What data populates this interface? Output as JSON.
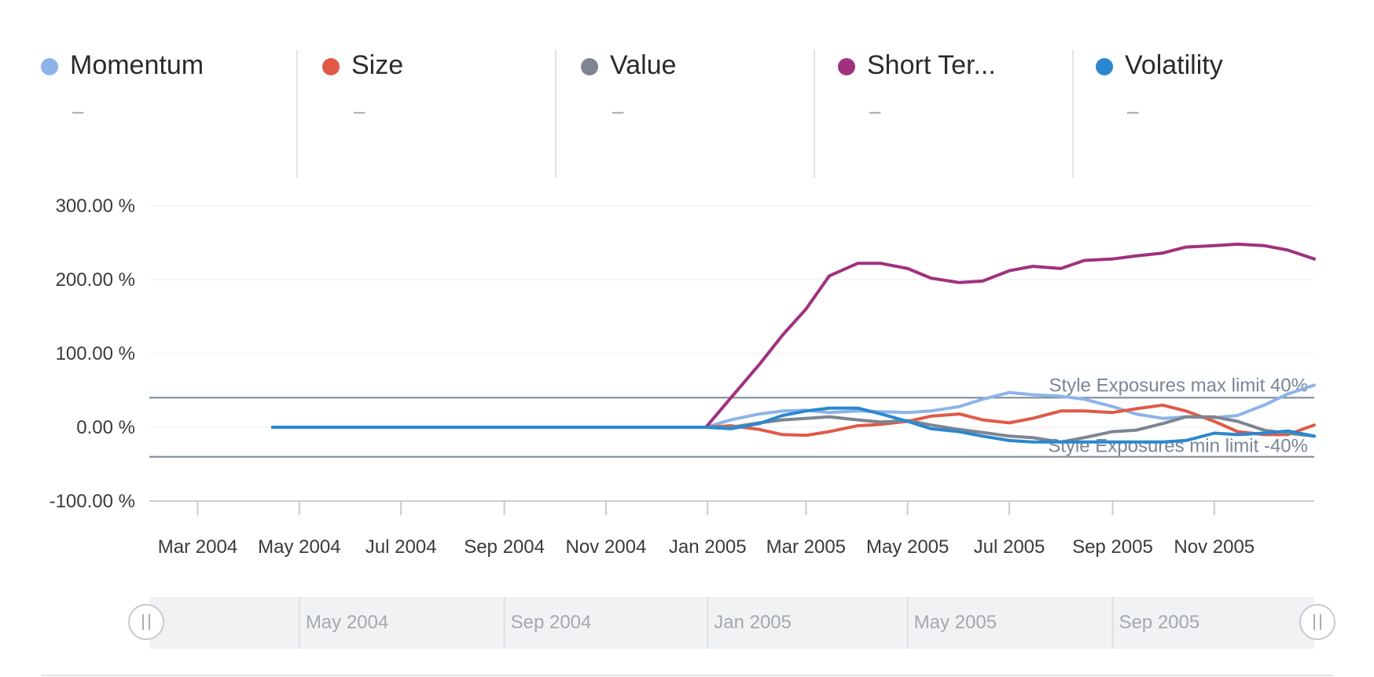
{
  "legend": {
    "items": [
      {
        "name": "Momentum",
        "value": "–",
        "color": "#8db4e8"
      },
      {
        "name": "Size",
        "value": "–",
        "color": "#e05a47"
      },
      {
        "name": "Value",
        "value": "–",
        "color": "#7d8590"
      },
      {
        "name": "Short Ter...",
        "value": "–",
        "color": "#a0317e"
      },
      {
        "name": "Volatility",
        "value": "–",
        "color": "#2b88d0"
      }
    ]
  },
  "chart_data": {
    "type": "line",
    "ylim": [
      -100,
      300
    ],
    "y_ticks": [
      300,
      200,
      100,
      0,
      -100
    ],
    "y_tick_labels": [
      "300.00 %",
      "200.00 %",
      "100.00 %",
      "0.00 %",
      "-100.00 %"
    ],
    "x_tick_labels": [
      "Mar 2004",
      "May 2004",
      "Jul 2004",
      "Sep 2004",
      "Nov 2004",
      "Jan 2005",
      "Mar 2005",
      "May 2005",
      "Jul 2005",
      "Sep 2005",
      "Nov 2005"
    ],
    "x_tick_dates": [
      "2004-03-01",
      "2004-05-01",
      "2004-07-01",
      "2004-09-01",
      "2004-11-01",
      "2005-01-01",
      "2005-03-01",
      "2005-05-01",
      "2005-07-01",
      "2005-09-01",
      "2005-11-01"
    ],
    "x_range": [
      "2004-02-01",
      "2005-12-31"
    ],
    "grid": true,
    "reference_lines": [
      {
        "label": "Style Exposures max limit 40%",
        "value": 40
      },
      {
        "label": "Style Exposures min limit -40%",
        "value": -40
      }
    ],
    "navigator": {
      "labels": [
        "May 2004",
        "Sep 2004",
        "Jan 2005",
        "May 2005",
        "Sep 2005"
      ],
      "dates": [
        "2004-05-01",
        "2004-09-01",
        "2005-01-01",
        "2005-05-01",
        "2005-09-01"
      ]
    },
    "series": [
      {
        "name": "Momentum",
        "color": "#8db4e8",
        "points": [
          [
            "2004-04-15",
            0
          ],
          [
            "2004-12-31",
            0
          ],
          [
            "2005-01-15",
            10
          ],
          [
            "2005-02-01",
            18
          ],
          [
            "2005-02-15",
            22
          ],
          [
            "2005-03-01",
            23
          ],
          [
            "2005-03-15",
            20
          ],
          [
            "2005-04-01",
            22
          ],
          [
            "2005-04-15",
            21
          ],
          [
            "2005-05-01",
            20
          ],
          [
            "2005-05-15",
            22
          ],
          [
            "2005-06-01",
            28
          ],
          [
            "2005-06-15",
            38
          ],
          [
            "2005-07-01",
            47
          ],
          [
            "2005-07-15",
            44
          ],
          [
            "2005-08-01",
            42
          ],
          [
            "2005-08-15",
            38
          ],
          [
            "2005-09-01",
            28
          ],
          [
            "2005-09-15",
            18
          ],
          [
            "2005-10-01",
            12
          ],
          [
            "2005-10-15",
            14
          ],
          [
            "2005-11-01",
            13
          ],
          [
            "2005-11-15",
            16
          ],
          [
            "2005-12-01",
            30
          ],
          [
            "2005-12-15",
            45
          ],
          [
            "2005-12-31",
            57
          ]
        ]
      },
      {
        "name": "Size",
        "color": "#e05a47",
        "points": [
          [
            "2004-04-15",
            0
          ],
          [
            "2004-12-31",
            0
          ],
          [
            "2005-01-15",
            2
          ],
          [
            "2005-02-01",
            -3
          ],
          [
            "2005-02-15",
            -10
          ],
          [
            "2005-03-01",
            -11
          ],
          [
            "2005-03-15",
            -6
          ],
          [
            "2005-04-01",
            2
          ],
          [
            "2005-04-15",
            4
          ],
          [
            "2005-05-01",
            8
          ],
          [
            "2005-05-15",
            15
          ],
          [
            "2005-06-01",
            18
          ],
          [
            "2005-06-15",
            10
          ],
          [
            "2005-07-01",
            6
          ],
          [
            "2005-07-15",
            12
          ],
          [
            "2005-08-01",
            22
          ],
          [
            "2005-08-15",
            22
          ],
          [
            "2005-09-01",
            20
          ],
          [
            "2005-09-15",
            25
          ],
          [
            "2005-10-01",
            30
          ],
          [
            "2005-10-15",
            22
          ],
          [
            "2005-11-01",
            8
          ],
          [
            "2005-11-15",
            -6
          ],
          [
            "2005-12-01",
            -10
          ],
          [
            "2005-12-15",
            -10
          ],
          [
            "2005-12-31",
            3
          ]
        ]
      },
      {
        "name": "Value",
        "color": "#7d8590",
        "points": [
          [
            "2004-04-15",
            0
          ],
          [
            "2004-12-31",
            0
          ],
          [
            "2005-01-15",
            0
          ],
          [
            "2005-02-01",
            6
          ],
          [
            "2005-02-15",
            10
          ],
          [
            "2005-03-01",
            12
          ],
          [
            "2005-03-15",
            14
          ],
          [
            "2005-04-01",
            10
          ],
          [
            "2005-04-15",
            7
          ],
          [
            "2005-05-01",
            9
          ],
          [
            "2005-05-15",
            3
          ],
          [
            "2005-06-01",
            -3
          ],
          [
            "2005-06-15",
            -7
          ],
          [
            "2005-07-01",
            -12
          ],
          [
            "2005-07-15",
            -14
          ],
          [
            "2005-08-01",
            -20
          ],
          [
            "2005-08-15",
            -14
          ],
          [
            "2005-09-01",
            -6
          ],
          [
            "2005-09-15",
            -4
          ],
          [
            "2005-10-01",
            5
          ],
          [
            "2005-10-15",
            14
          ],
          [
            "2005-11-01",
            14
          ],
          [
            "2005-11-15",
            8
          ],
          [
            "2005-12-01",
            -4
          ],
          [
            "2005-12-15",
            -8
          ],
          [
            "2005-12-31",
            -12
          ]
        ]
      },
      {
        "name": "Short Ter...",
        "color": "#a0317e",
        "points": [
          [
            "2004-04-15",
            0
          ],
          [
            "2004-12-31",
            0
          ],
          [
            "2005-01-15",
            40
          ],
          [
            "2005-02-01",
            85
          ],
          [
            "2005-02-15",
            125
          ],
          [
            "2005-03-01",
            160
          ],
          [
            "2005-03-15",
            205
          ],
          [
            "2005-04-01",
            222
          ],
          [
            "2005-04-15",
            222
          ],
          [
            "2005-05-01",
            215
          ],
          [
            "2005-05-15",
            202
          ],
          [
            "2005-06-01",
            196
          ],
          [
            "2005-06-15",
            198
          ],
          [
            "2005-07-01",
            212
          ],
          [
            "2005-07-15",
            218
          ],
          [
            "2005-08-01",
            215
          ],
          [
            "2005-08-15",
            226
          ],
          [
            "2005-09-01",
            228
          ],
          [
            "2005-09-15",
            232
          ],
          [
            "2005-10-01",
            236
          ],
          [
            "2005-10-15",
            244
          ],
          [
            "2005-11-01",
            246
          ],
          [
            "2005-11-15",
            248
          ],
          [
            "2005-12-01",
            246
          ],
          [
            "2005-12-15",
            240
          ],
          [
            "2005-12-31",
            228
          ]
        ]
      },
      {
        "name": "Volatility",
        "color": "#2b88d0",
        "points": [
          [
            "2004-04-15",
            0
          ],
          [
            "2004-12-31",
            0
          ],
          [
            "2005-01-15",
            -2
          ],
          [
            "2005-02-01",
            5
          ],
          [
            "2005-02-15",
            16
          ],
          [
            "2005-03-01",
            22
          ],
          [
            "2005-03-15",
            26
          ],
          [
            "2005-04-01",
            26
          ],
          [
            "2005-04-15",
            18
          ],
          [
            "2005-05-01",
            8
          ],
          [
            "2005-05-15",
            -2
          ],
          [
            "2005-06-01",
            -6
          ],
          [
            "2005-06-15",
            -12
          ],
          [
            "2005-07-01",
            -18
          ],
          [
            "2005-07-15",
            -20
          ],
          [
            "2005-08-01",
            -20
          ],
          [
            "2005-08-15",
            -20
          ],
          [
            "2005-09-01",
            -20
          ],
          [
            "2005-09-15",
            -20
          ],
          [
            "2005-10-01",
            -20
          ],
          [
            "2005-10-15",
            -18
          ],
          [
            "2005-11-01",
            -8
          ],
          [
            "2005-11-15",
            -10
          ],
          [
            "2005-12-01",
            -8
          ],
          [
            "2005-12-15",
            -5
          ],
          [
            "2005-12-31",
            -12
          ]
        ]
      }
    ]
  }
}
